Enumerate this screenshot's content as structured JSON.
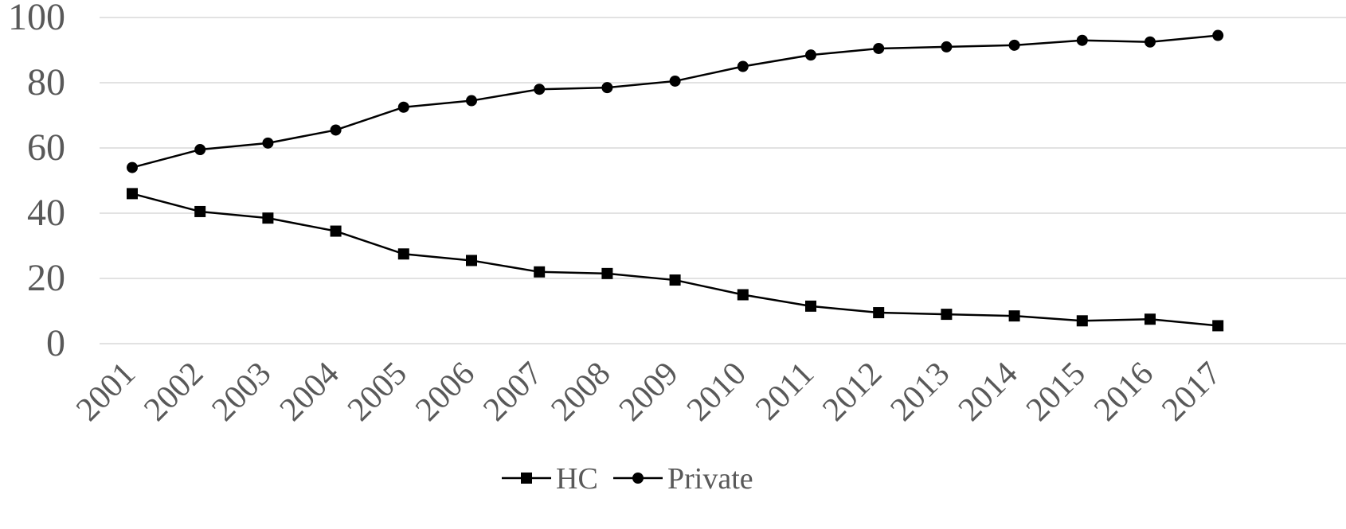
{
  "chart_data": {
    "type": "line",
    "title": "",
    "xlabel": "",
    "ylabel": "",
    "categories": [
      "2001",
      "2002",
      "2003",
      "2004",
      "2005",
      "2006",
      "2007",
      "2008",
      "2009",
      "2010",
      "2011",
      "2012",
      "2013",
      "2014",
      "2015",
      "2016",
      "2017"
    ],
    "ylim": [
      0,
      100
    ],
    "yticks": [
      "0",
      "20",
      "40",
      "60",
      "80",
      "100"
    ],
    "grid": true,
    "legend_position": "bottom",
    "series": [
      {
        "name": "HC",
        "marker": "square",
        "color": "#000000",
        "values": [
          46.0,
          40.5,
          38.5,
          34.5,
          27.5,
          25.5,
          22.0,
          21.5,
          19.5,
          15.0,
          11.5,
          9.5,
          9.0,
          8.5,
          7.0,
          7.5,
          5.5
        ]
      },
      {
        "name": "Private",
        "marker": "circle",
        "color": "#000000",
        "values": [
          54.0,
          59.5,
          61.5,
          65.5,
          72.5,
          74.5,
          78.0,
          78.5,
          80.5,
          85.0,
          88.5,
          90.5,
          91.0,
          91.5,
          93.0,
          92.5,
          94.5
        ]
      }
    ]
  }
}
